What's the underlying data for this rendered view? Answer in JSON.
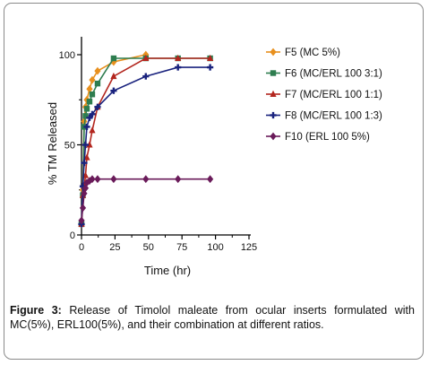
{
  "chart_data": {
    "type": "line",
    "xlabel": "Time (hr)",
    "ylabel": "% TM Released",
    "xlim": [
      0,
      125
    ],
    "ylim": [
      0,
      100
    ],
    "xticks": [
      "0",
      "25",
      "50",
      "75",
      "100",
      "125"
    ],
    "yticks": [
      "0",
      "50",
      "100"
    ],
    "legend_position": "right",
    "series": [
      {
        "name": "F5 (MC 5%)",
        "color": "#E8901E",
        "marker": "diamond",
        "x": [
          0,
          1,
          2,
          3,
          4,
          6,
          8,
          12,
          24,
          48
        ],
        "y": [
          6,
          25,
          63,
          71,
          75,
          81,
          86,
          91,
          96,
          100
        ]
      },
      {
        "name": "F6 (MC/ERL 100 3:1)",
        "color": "#2E7D4F",
        "marker": "square",
        "x": [
          0,
          1,
          2,
          3,
          4,
          6,
          8,
          12,
          24,
          48,
          72,
          96
        ],
        "y": [
          6,
          22,
          60,
          66,
          70,
          74,
          78,
          84,
          98,
          98,
          98,
          98
        ]
      },
      {
        "name": "F7 (MC/ERL 100 1:1)",
        "color": "#B3261E",
        "marker": "triangle",
        "x": [
          0,
          1,
          2,
          3,
          4,
          6,
          8,
          12,
          24,
          48,
          72,
          96
        ],
        "y": [
          6,
          22,
          27,
          33,
          43,
          50,
          58,
          71,
          88,
          98,
          98,
          98
        ]
      },
      {
        "name": "F8 (MC/ERL 100 1:3)",
        "color": "#1A237E",
        "marker": "cross",
        "x": [
          0,
          1,
          2,
          3,
          4,
          6,
          8,
          12,
          24,
          48,
          72,
          96
        ],
        "y": [
          6,
          27,
          40,
          50,
          60,
          65,
          67,
          71,
          80,
          88,
          93,
          93
        ]
      },
      {
        "name": "F10 (ERL 100 5%)",
        "color": "#6A1B5A",
        "marker": "diamond",
        "x": [
          0,
          1,
          2,
          3,
          4,
          6,
          8,
          12,
          24,
          48,
          72,
          96
        ],
        "y": [
          8,
          15,
          23,
          26,
          29,
          30,
          31,
          31,
          31,
          31,
          31,
          31
        ]
      }
    ]
  },
  "caption": {
    "label": "Figure 3:",
    "text": "Release of Timolol maleate from ocular inserts formulated with MC(5%), ERL100(5%), and their combination at different ratios."
  }
}
